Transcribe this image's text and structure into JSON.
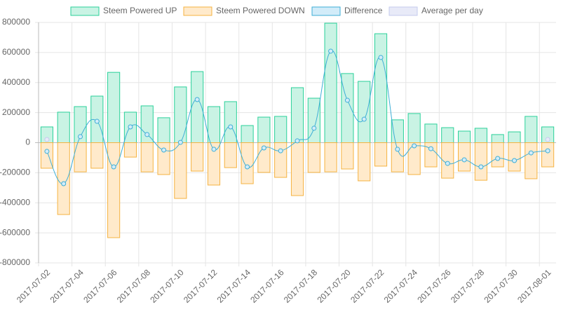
{
  "chart_data": {
    "type": "bar",
    "categories": [
      "2017-07-02",
      null,
      "2017-07-04",
      null,
      "2017-07-06",
      null,
      "2017-07-08",
      null,
      "2017-07-10",
      null,
      "2017-07-12",
      null,
      "2017-07-14",
      null,
      "2017-07-16",
      null,
      "2017-07-18",
      null,
      "2017-07-20",
      null,
      "2017-07-22",
      null,
      "2017-07-24",
      null,
      "2017-07-26",
      null,
      "2017-07-28",
      null,
      "2017-07-30",
      null,
      "2017-08-01"
    ],
    "series": [
      {
        "name": "Steem Powered UP",
        "type": "bar",
        "color": "#2bd19a",
        "fill": "#c9f3e4",
        "values": [
          105000,
          203000,
          240000,
          310000,
          468000,
          203000,
          245000,
          166000,
          371000,
          473000,
          240000,
          273000,
          114000,
          170000,
          175000,
          366000,
          296000,
          795000,
          460000,
          408000,
          725000,
          152000,
          194000,
          124000,
          100000,
          77000,
          96000,
          54000,
          72000,
          175000,
          105000
        ]
      },
      {
        "name": "Steem Powered DOWN",
        "type": "bar",
        "color": "#f5b342",
        "fill": "#ffeacb",
        "values": [
          -170000,
          -478000,
          -194000,
          -170000,
          -632000,
          -96000,
          -194000,
          -212000,
          -371000,
          -189000,
          -282000,
          -166000,
          -273000,
          -198000,
          -231000,
          -352000,
          -198000,
          -194000,
          -175000,
          -254000,
          -156000,
          -194000,
          -212000,
          -161000,
          -236000,
          -189000,
          -250000,
          -161000,
          -189000,
          -240000,
          -161000
        ]
      },
      {
        "name": "Difference",
        "type": "line",
        "color": "#3eaed6",
        "fill": "#d2ecf9",
        "values": [
          -58000,
          -273000,
          40000,
          142000,
          -161000,
          105000,
          54000,
          -49000,
          2000,
          287000,
          -44000,
          105000,
          -161000,
          -35000,
          -54000,
          12000,
          96000,
          609000,
          282000,
          156000,
          567000,
          -44000,
          -21000,
          -40000,
          -138000,
          -114000,
          -161000,
          -105000,
          -119000,
          -68000,
          -54000
        ]
      },
      {
        "name": "Average per day",
        "type": "line",
        "color": "#c5cbee",
        "fill": "#e8eaf8",
        "values": [
          21000,
          null,
          null,
          null,
          null,
          null,
          null,
          null,
          null,
          null,
          null,
          null,
          null,
          null,
          null,
          null,
          null,
          null,
          null,
          null,
          null,
          null,
          null,
          null,
          null,
          null,
          null,
          null,
          null,
          null,
          21000
        ]
      }
    ],
    "ylim": [
      -800000,
      800000
    ],
    "yticks": [
      -800000,
      -600000,
      -400000,
      -200000,
      0,
      200000,
      400000,
      600000,
      800000
    ],
    "grid": true,
    "legend": "top"
  }
}
